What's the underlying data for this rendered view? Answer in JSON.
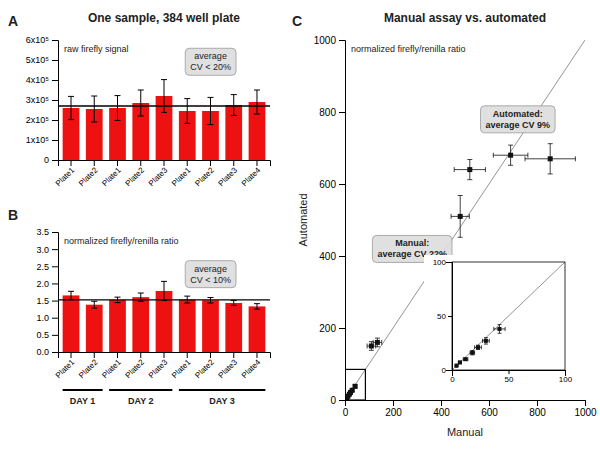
{
  "chart_data": [
    {
      "type": "bar",
      "title": "One sample, 384 well plate",
      "subtitle": "raw firefly signal",
      "panel_label": "A",
      "categories": [
        "Plate1",
        "Plate2",
        "Plate1",
        "Plate2",
        "Plate3",
        "Plate1",
        "Plate2",
        "Plate3",
        "Plate4"
      ],
      "values": [
        260000,
        255000,
        260000,
        285000,
        320000,
        245000,
        245000,
        275000,
        290000
      ],
      "errors": [
        58000,
        65000,
        62000,
        65000,
        82000,
        62000,
        68000,
        52000,
        60000
      ],
      "mean_line": 270000,
      "color": "#ee1111",
      "ylim": [
        0,
        600000
      ],
      "yticks": [
        0,
        {
          "value": 100000,
          "label": "1x10⁵"
        },
        {
          "value": 200000,
          "label": "2x10⁵"
        },
        {
          "value": 300000,
          "label": "3x10⁵"
        },
        {
          "value": 400000,
          "label": "4x10⁵"
        },
        {
          "value": 500000,
          "label": "5x10⁵"
        },
        {
          "value": 600000,
          "label": "6x10⁵"
        }
      ],
      "annotations": [
        "average\nCV < 20%"
      ],
      "grid": false
    },
    {
      "type": "bar",
      "subtitle": "normalized firefly/renilla ratio",
      "panel_label": "B",
      "categories": [
        "Plate1",
        "Plate2",
        "Plate1",
        "Plate2",
        "Plate3",
        "Plate1",
        "Plate2",
        "Plate3",
        "Plate4"
      ],
      "groups": [
        "DAY 1",
        "DAY 1",
        "DAY 2",
        "DAY 2",
        "DAY 2",
        "DAY 3",
        "DAY 3",
        "DAY 3",
        "DAY 3"
      ],
      "values": [
        1.65,
        1.38,
        1.52,
        1.6,
        1.78,
        1.53,
        1.51,
        1.43,
        1.33
      ],
      "errors": [
        0.12,
        0.1,
        0.08,
        0.12,
        0.28,
        0.1,
        0.08,
        0.07,
        0.08
      ],
      "mean_line": 1.52,
      "color": "#ee1111",
      "ylim": [
        0,
        3.5
      ],
      "yticks": [
        {
          "value": 0,
          "label": "0.0"
        },
        0.5,
        {
          "value": 1,
          "label": "1.0"
        },
        1.5,
        {
          "value": 2,
          "label": "2.0"
        },
        2.5,
        {
          "value": 3,
          "label": "3.0"
        },
        3.5
      ],
      "annotations": [
        "average\nCV < 10%"
      ],
      "grid": false
    },
    {
      "type": "scatter",
      "title": "Manual assay vs. automated",
      "subtitle": "normalized firefly/renilla ratio",
      "panel_label": "C",
      "xlabel": "Manual",
      "ylabel": "Automated",
      "x": [
        4,
        7,
        12,
        18,
        23,
        30,
        42,
        110,
        135,
        480,
        520,
        690,
        855
      ],
      "values": [
        4,
        7,
        10,
        16,
        21,
        27,
        38,
        150,
        160,
        510,
        640,
        680,
        670
      ],
      "x_errors": [
        0.5,
        1,
        2,
        2,
        3,
        3,
        5,
        18,
        18,
        38,
        65,
        72,
        105
      ],
      "y_errors": [
        0.5,
        1,
        1,
        2,
        2,
        3,
        4,
        12,
        12,
        58,
        28,
        28,
        42
      ],
      "identity_line": [
        0,
        1000
      ],
      "highlight_box": {
        "x": [
          0,
          85
        ],
        "y": [
          0,
          85
        ]
      },
      "xlim": [
        0,
        1000
      ],
      "ylim": [
        0,
        1000
      ],
      "xticks": [
        0,
        200,
        400,
        600,
        800,
        1000
      ],
      "yticks": [
        0,
        200,
        400,
        600,
        800,
        1000
      ],
      "annotations": [
        "Manual:\naverage CV 22%",
        "Automated:\naverage CV 9%"
      ],
      "grid": false
    },
    {
      "type": "scatter",
      "x": [
        4,
        7,
        12,
        18,
        23,
        30,
        42
      ],
      "values": [
        4,
        7,
        10,
        16,
        21,
        27,
        38
      ],
      "x_errors": [
        0.5,
        1,
        2,
        2,
        3,
        3,
        5
      ],
      "y_errors": [
        0.5,
        1,
        1,
        2,
        2,
        3,
        4
      ],
      "identity_line": [
        0,
        100
      ],
      "xlim": [
        0,
        100
      ],
      "ylim": [
        0,
        100
      ],
      "xticks": [
        0,
        50,
        100
      ],
      "yticks": [
        0,
        50,
        100
      ],
      "grid": false
    }
  ]
}
